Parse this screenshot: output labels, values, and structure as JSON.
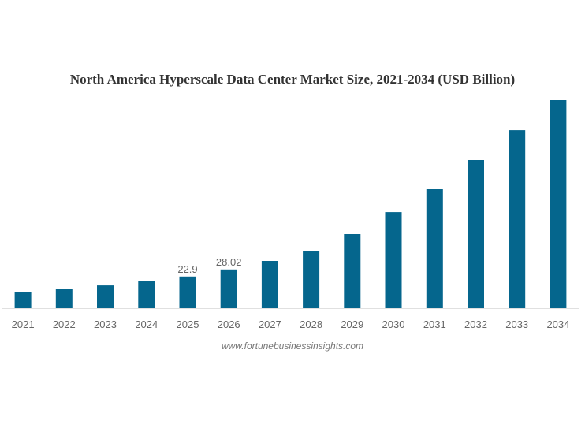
{
  "chart_data": {
    "type": "bar",
    "title": "North America Hyperscale Data Center Market Size, 2021-2034 (USD Billion)",
    "xlabel": "",
    "ylabel": "",
    "categories": [
      "2021",
      "2022",
      "2023",
      "2024",
      "2025",
      "2026",
      "2027",
      "2028",
      "2029",
      "2030",
      "2031",
      "2032",
      "2033",
      "2034"
    ],
    "values": [
      11.4,
      13.7,
      16.5,
      19.5,
      22.9,
      28.02,
      34.2,
      41.6,
      53.6,
      69.5,
      86.1,
      107.2,
      128.8,
      150.5
    ],
    "data_labels": [
      null,
      null,
      null,
      null,
      "22.9",
      "28.02",
      null,
      null,
      null,
      null,
      null,
      null,
      null,
      null
    ],
    "ylim": [
      0,
      150.5
    ],
    "grid": false,
    "bar_color": "#05668d",
    "source": "www.fortunebusinessinsights.com"
  }
}
